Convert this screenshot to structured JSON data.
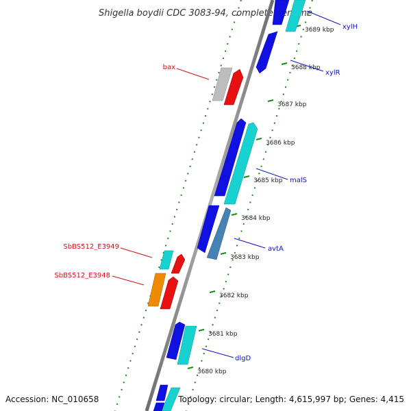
{
  "title": "Shigella boydii CDC 3083-94, complete genome",
  "footer": {
    "accession": "Accession: NC_010658",
    "summary": "Topology: circular; Length: 4,615,997 bp; Genes: 4,415"
  },
  "colors": {
    "backbone": "#8c8c8c",
    "tick_dots": "#138a13",
    "gene_blue": "#1010e0",
    "gene_cyan": "#18d2d2",
    "gene_steel": "#4682b4",
    "gene_red": "#e81010",
    "gene_orange": "#f08a00",
    "gene_gray": "#bdbdbd",
    "label_blue": "#1010cc",
    "label_red": "#d01010"
  },
  "ticks": [
    "3680 kbp",
    "3681 kbp",
    "3682 kbp",
    "3683 kbp",
    "3684 kbp",
    "3685 kbp",
    "3686 kbp",
    "3687 kbp",
    "3688 kbp",
    "3689 kbp"
  ],
  "genes": [
    {
      "name": "xylH",
      "color": "gene_cyan"
    },
    {
      "name": "xylR",
      "color": "gene_blue"
    },
    {
      "name": "bax",
      "color": "gene_gray"
    },
    {
      "name": "malS",
      "color": "gene_cyan"
    },
    {
      "name": "avtA",
      "color": "gene_steel"
    },
    {
      "name": "SbBS512_E3949",
      "color": "gene_cyan"
    },
    {
      "name": "SbBS512_E3948",
      "color": "gene_orange"
    },
    {
      "name": "dlgD",
      "color": "gene_cyan"
    }
  ]
}
